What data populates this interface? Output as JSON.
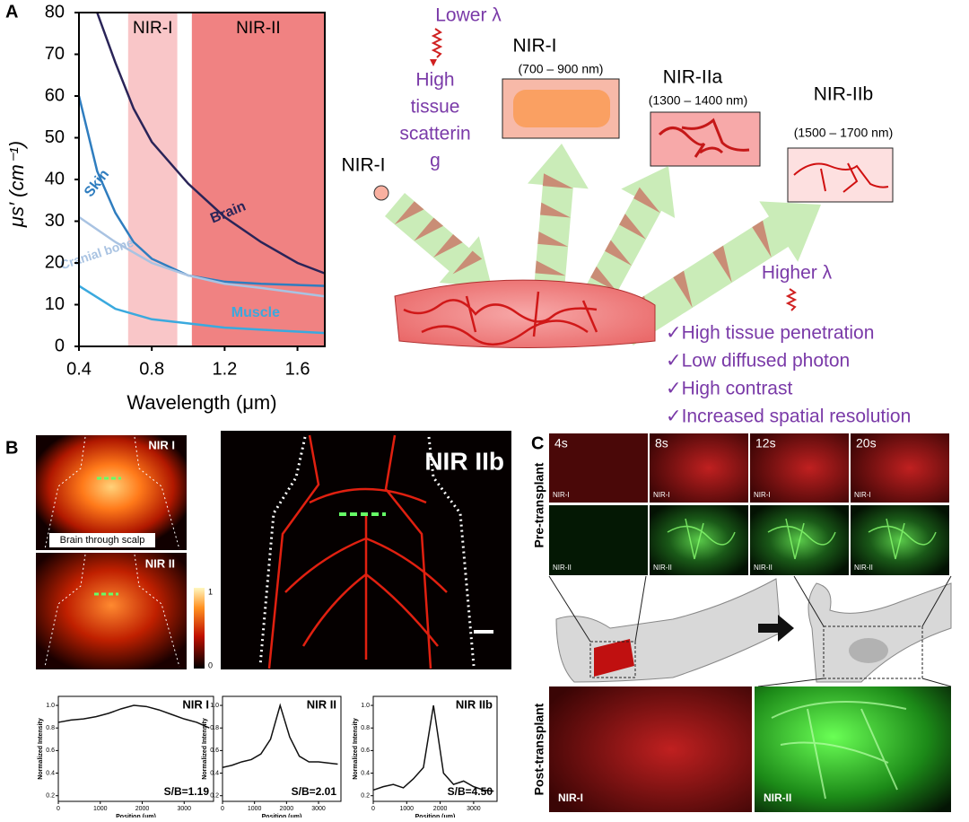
{
  "panel_a": {
    "label": "A",
    "chart": {
      "type": "line",
      "xlabel": "Wavelength (μm)",
      "ylabel": "μs′ (cm⁻¹)",
      "xlim": [
        0.4,
        1.75
      ],
      "ylim": [
        0,
        80
      ],
      "xticks": [
        0.4,
        0.8,
        1.2,
        1.6
      ],
      "yticks": [
        0,
        10,
        20,
        30,
        40,
        50,
        60,
        70,
        80
      ],
      "bands": [
        {
          "name": "NIR-I",
          "range": [
            0.67,
            0.94
          ],
          "color": "#f9c6c8"
        },
        {
          "name": "NIR-II",
          "range": [
            1.02,
            1.75
          ],
          "color": "#f08282"
        }
      ],
      "series": [
        {
          "name": "Brain",
          "color": "#2a2458",
          "x": [
            0.5,
            0.6,
            0.7,
            0.8,
            1.0,
            1.2,
            1.4,
            1.6,
            1.75
          ],
          "values": [
            80,
            68,
            57,
            49,
            39,
            31,
            25,
            20,
            17.5
          ]
        },
        {
          "name": "Skin",
          "color": "#2f7dbf",
          "x": [
            0.4,
            0.5,
            0.6,
            0.7,
            0.8,
            1.0,
            1.2,
            1.4,
            1.75
          ],
          "values": [
            60,
            42,
            32,
            25,
            21,
            17,
            15.5,
            15,
            14.5
          ]
        },
        {
          "name": "Cranial bone",
          "color": "#a9c3e2",
          "x": [
            0.4,
            0.6,
            0.8,
            1.0,
            1.2,
            1.4,
            1.75
          ],
          "values": [
            31,
            25,
            20,
            17,
            15,
            14,
            12
          ]
        },
        {
          "name": "Muscle",
          "color": "#3aa9de",
          "x": [
            0.4,
            0.6,
            0.8,
            1.0,
            1.2,
            1.4,
            1.75
          ],
          "values": [
            14.5,
            9,
            6.5,
            5.5,
            4.5,
            4,
            3.2
          ]
        }
      ]
    },
    "diagram": {
      "lower": "Lower λ",
      "scatter": [
        "High",
        "tissue",
        "scatterin",
        "g"
      ],
      "source": "NIR-I",
      "windows": [
        {
          "name": "NIR-I",
          "range": "(700 – 900 nm)"
        },
        {
          "name": "NIR-IIa",
          "range": "(1300 – 1400 nm)"
        },
        {
          "name": "NIR-IIb",
          "range": "(1500 – 1700 nm)"
        }
      ],
      "higher": "Higher λ",
      "benefits": [
        "✓High tissue penetration",
        "✓Low diffused photon",
        "✓High contrast",
        "✓Increased spatial resolution"
      ]
    }
  },
  "panel_b": {
    "label": "B",
    "images": [
      {
        "title": "NIR I",
        "caption": "Brain through scalp"
      },
      {
        "title": "NIR II"
      },
      {
        "title": "NIR IIb"
      }
    ],
    "colorbar": {
      "max": 1,
      "min": 0
    },
    "profiles": {
      "type": "line",
      "ylabel": "Normalized Intensity",
      "xlabel": "Position (μm)",
      "xlim": [
        0,
        3700
      ],
      "ylim": [
        0.15,
        1.08
      ],
      "xticks": [
        0,
        1000,
        2000,
        3000
      ],
      "yticks": [
        0.2,
        0.4,
        0.6,
        0.8,
        {
          "value": 1,
          "label": "1.0"
        }
      ],
      "plots": [
        {
          "title": "NIR I",
          "ratio": "S/B=1.19",
          "x": [
            0,
            300,
            600,
            900,
            1200,
            1500,
            1800,
            2100,
            2400,
            2700,
            3000,
            3300,
            3600
          ],
          "values": [
            0.85,
            0.87,
            0.88,
            0.9,
            0.93,
            0.97,
            1.0,
            0.99,
            0.96,
            0.92,
            0.88,
            0.85,
            0.8
          ]
        },
        {
          "title": "NIR II",
          "ratio": "S/B=2.01",
          "x": [
            0,
            300,
            600,
            900,
            1200,
            1500,
            1800,
            2100,
            2400,
            2700,
            3000,
            3300,
            3600
          ],
          "values": [
            0.45,
            0.47,
            0.5,
            0.52,
            0.57,
            0.7,
            1.0,
            0.72,
            0.55,
            0.5,
            0.5,
            0.49,
            0.48
          ]
        },
        {
          "title": "NIR IIb",
          "ratio": "S/B=4.50",
          "x": [
            0,
            300,
            600,
            900,
            1200,
            1500,
            1800,
            2100,
            2400,
            2700,
            3000,
            3300,
            3600
          ],
          "values": [
            0.25,
            0.28,
            0.3,
            0.27,
            0.35,
            0.45,
            1.0,
            0.4,
            0.3,
            0.33,
            0.28,
            0.25,
            0.24
          ]
        }
      ]
    }
  },
  "panel_c": {
    "label": "C",
    "times": [
      "4s",
      "8s",
      "12s",
      "20s"
    ],
    "row_labels": [
      "NIR-I",
      "NIR-II"
    ],
    "pre": "Pre-transplant",
    "post": "Post-transplant",
    "post_labels": [
      "NIR-I",
      "NIR-II"
    ]
  }
}
